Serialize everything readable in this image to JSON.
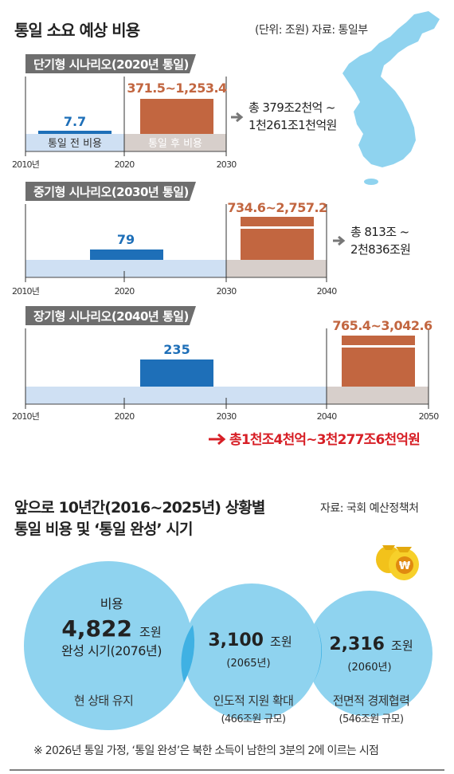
{
  "title": "통일 소요 예상 비용",
  "unit_source": "(단위: 조원) 자료: 통일부",
  "chart_data": [
    {
      "type": "bar",
      "scenario": "단기형 시나리오(2020년 통일)",
      "x_ticks": [
        "2010년",
        "2020",
        "2030"
      ],
      "before": {
        "label": "통일 전 비용",
        "value": "7.7",
        "period": [
          "2010",
          "2020"
        ]
      },
      "after": {
        "label": "통일 후 비용",
        "value": "371.5~1,253.4",
        "min": 371.5,
        "max": 1253.4,
        "period": [
          "2020",
          "2030"
        ]
      },
      "total": [
        "총 379조2천억 ~",
        "1천261조1천억원"
      ]
    },
    {
      "type": "bar",
      "scenario": "중기형 시나리오(2030년 통일)",
      "x_ticks": [
        "2010년",
        "2020",
        "2030",
        "2040"
      ],
      "before": {
        "value": "79",
        "period": [
          "2010",
          "2030"
        ]
      },
      "after": {
        "value": "734.6~2,757.2",
        "min": 734.6,
        "max": 2757.2,
        "period": [
          "2030",
          "2040"
        ]
      },
      "total": [
        "총 813조 ~",
        "2천836조원"
      ]
    },
    {
      "type": "bar",
      "scenario": "장기형 시나리오(2040년 통일)",
      "x_ticks": [
        "2010년",
        "2020",
        "2030",
        "2040",
        "2050"
      ],
      "before": {
        "value": "235",
        "period": [
          "2010",
          "2040"
        ]
      },
      "after": {
        "value": "765.4~3,042.6",
        "min": 765.4,
        "max": 3042.6,
        "period": [
          "2040",
          "2050"
        ]
      },
      "total": [
        "총1천조4천억~3천277조6천억원"
      ]
    },
    {
      "type": "bubble",
      "title_lines": [
        "앞으로 10년간(2016~2025년) 상황별",
        "통일 비용 및 ‘통일 완성’ 시기"
      ],
      "source": "자료: 국회 예산정책처",
      "items": [
        {
          "name": "현 상태 유지",
          "pre": "비용",
          "value": 4822,
          "value_text": "4,822",
          "unit": "조원",
          "year_text": "완성 시기(2076년)"
        },
        {
          "name": "인도적 지원 확대",
          "sub": "(466조원 규모)",
          "value": 3100,
          "value_text": "3,100",
          "unit": "조원",
          "year_text": "(2065년)"
        },
        {
          "name": "전면적 경제협력",
          "sub": "(546조원 규모)",
          "value": 2316,
          "value_text": "2,316",
          "unit": "조원",
          "year_text": "(2060년)"
        }
      ],
      "note": "※ 2026년 통일 가정, ‘통일 완성’은 북한 소득이 남한의 3분의 2에 이르는 시점"
    }
  ],
  "colors": {
    "blue": "#1e6fb8",
    "orange": "#c26640",
    "light_blue": "#cfe0f3",
    "gray": "#d7cfcb",
    "tag": "#6e6e6e",
    "red": "#d71f26",
    "bubble": "#8fd3ef",
    "overlap": "#3fb1e3",
    "map": "#8fd3ef"
  }
}
